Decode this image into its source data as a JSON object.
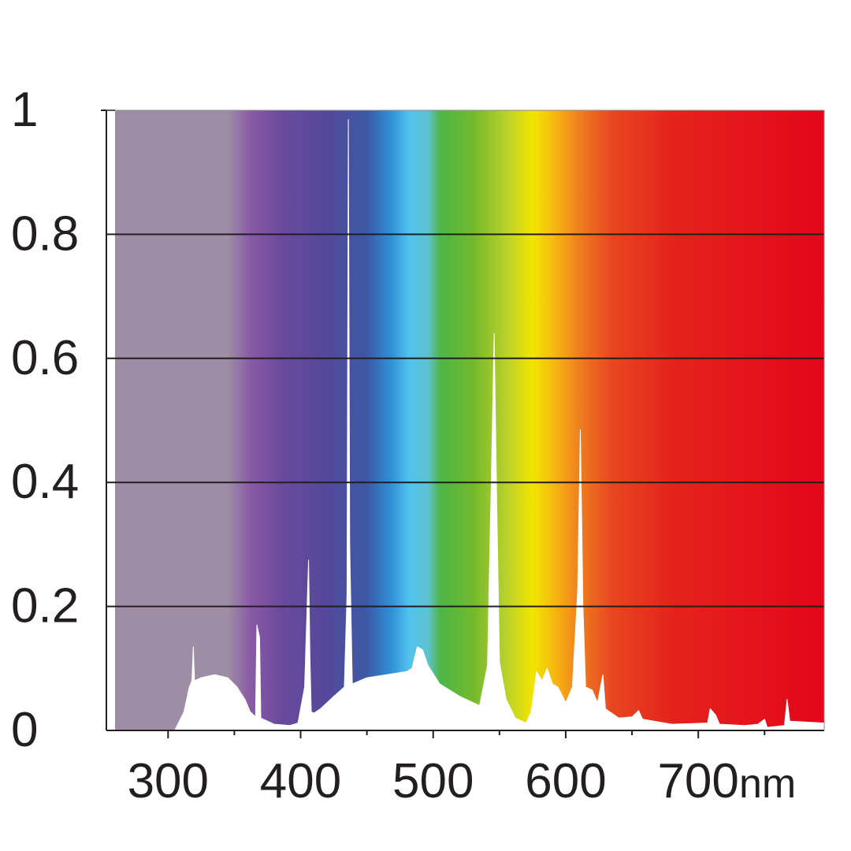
{
  "chart_data": {
    "type": "area",
    "title": "",
    "xlabel": "",
    "ylabel": "",
    "x_unit": "nm",
    "xlim": [
      260,
      795
    ],
    "ylim": [
      0,
      1
    ],
    "grid": true,
    "legend": "none",
    "y_ticks": [
      {
        "value": 0,
        "label": "0"
      },
      {
        "value": 0.2,
        "label": "0.2"
      },
      {
        "value": 0.4,
        "label": "0.4"
      },
      {
        "value": 0.6,
        "label": "0.6"
      },
      {
        "value": 0.8,
        "label": "0.8"
      },
      {
        "value": 1,
        "label": "1"
      }
    ],
    "x_ticks": [
      {
        "value": 300,
        "label": "300"
      },
      {
        "value": 400,
        "label": "400"
      },
      {
        "value": 500,
        "label": "500"
      },
      {
        "value": 600,
        "label": "600"
      },
      {
        "value": 700,
        "label": "700"
      }
    ],
    "background_spectrum": [
      {
        "wavelength": 260,
        "color": "#9e8ea5"
      },
      {
        "wavelength": 345,
        "color": "#9e8ea5"
      },
      {
        "wavelength": 362,
        "color": "#8a5aa6"
      },
      {
        "wavelength": 385,
        "color": "#6b4a9c"
      },
      {
        "wavelength": 420,
        "color": "#54489a"
      },
      {
        "wavelength": 450,
        "color": "#3c59a6"
      },
      {
        "wavelength": 468,
        "color": "#2f8fd4"
      },
      {
        "wavelength": 482,
        "color": "#52c3ee"
      },
      {
        "wavelength": 496,
        "color": "#5ec3d0"
      },
      {
        "wavelength": 505,
        "color": "#4db649"
      },
      {
        "wavelength": 530,
        "color": "#73b82e"
      },
      {
        "wavelength": 555,
        "color": "#b9d12b"
      },
      {
        "wavelength": 575,
        "color": "#f2e600"
      },
      {
        "wavelength": 592,
        "color": "#f7b512"
      },
      {
        "wavelength": 612,
        "color": "#ee7a1f"
      },
      {
        "wavelength": 635,
        "color": "#e84620"
      },
      {
        "wavelength": 680,
        "color": "#e4231c"
      },
      {
        "wavelength": 795,
        "color": "#e3061b"
      }
    ],
    "series": [
      {
        "fill": "#ffffff",
        "points": [
          [
            260,
            0
          ],
          [
            305,
            0
          ],
          [
            312,
            0.03
          ],
          [
            316,
            0.07
          ],
          [
            318,
            0.08
          ],
          [
            319,
            0.135
          ],
          [
            320,
            0.08
          ],
          [
            325,
            0.085
          ],
          [
            335,
            0.09
          ],
          [
            345,
            0.085
          ],
          [
            352,
            0.07
          ],
          [
            358,
            0.05
          ],
          [
            362,
            0.03
          ],
          [
            366,
            0.022
          ],
          [
            367,
            0.17
          ],
          [
            369,
            0.15
          ],
          [
            370,
            0.02
          ],
          [
            380,
            0.01
          ],
          [
            392,
            0.008
          ],
          [
            398,
            0.012
          ],
          [
            403,
            0.07
          ],
          [
            406,
            0.275
          ],
          [
            407,
            0.12
          ],
          [
            408,
            0.03
          ],
          [
            410,
            0.028
          ],
          [
            415,
            0.035
          ],
          [
            425,
            0.055
          ],
          [
            433,
            0.07
          ],
          [
            435,
            0.22
          ],
          [
            436,
            0.985
          ],
          [
            437,
            0.3
          ],
          [
            439,
            0.075
          ],
          [
            450,
            0.085
          ],
          [
            465,
            0.09
          ],
          [
            480,
            0.095
          ],
          [
            484,
            0.1
          ],
          [
            488,
            0.135
          ],
          [
            492,
            0.13
          ],
          [
            496,
            0.105
          ],
          [
            505,
            0.075
          ],
          [
            520,
            0.055
          ],
          [
            535,
            0.04
          ],
          [
            541,
            0.105
          ],
          [
            544,
            0.42
          ],
          [
            546,
            0.64
          ],
          [
            548,
            0.36
          ],
          [
            550,
            0.11
          ],
          [
            555,
            0.05
          ],
          [
            562,
            0.02
          ],
          [
            570,
            0.012
          ],
          [
            574,
            0.03
          ],
          [
            578,
            0.095
          ],
          [
            582,
            0.08
          ],
          [
            586,
            0.1
          ],
          [
            590,
            0.075
          ],
          [
            594,
            0.07
          ],
          [
            600,
            0.045
          ],
          [
            605,
            0.07
          ],
          [
            609,
            0.225
          ],
          [
            611,
            0.485
          ],
          [
            613,
            0.2
          ],
          [
            615,
            0.07
          ],
          [
            620,
            0.065
          ],
          [
            624,
            0.045
          ],
          [
            628,
            0.09
          ],
          [
            630,
            0.035
          ],
          [
            640,
            0.02
          ],
          [
            650,
            0.022
          ],
          [
            655,
            0.032
          ],
          [
            658,
            0.018
          ],
          [
            680,
            0.01
          ],
          [
            707,
            0.012
          ],
          [
            709,
            0.035
          ],
          [
            713,
            0.025
          ],
          [
            716,
            0.01
          ],
          [
            735,
            0.008
          ],
          [
            745,
            0.01
          ],
          [
            750,
            0.018
          ],
          [
            752,
            0.005
          ],
          [
            765,
            0.008
          ],
          [
            767,
            0.05
          ],
          [
            769,
            0.015
          ],
          [
            795,
            0.012
          ],
          [
            795,
            0
          ]
        ]
      }
    ]
  }
}
